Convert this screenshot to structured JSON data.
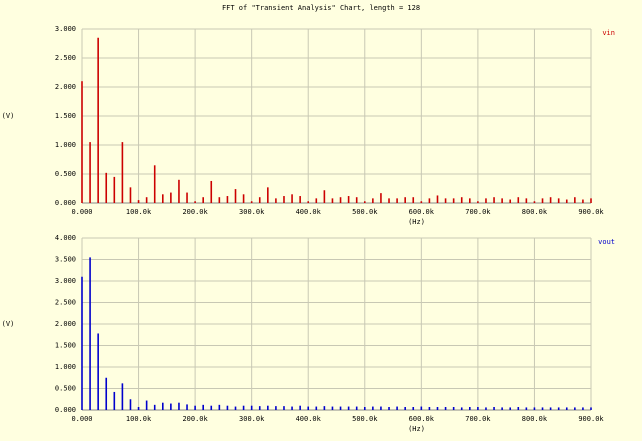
{
  "chart_data": [
    {
      "type": "stem",
      "title": "FFT of \"Transient Analysis\" Chart, length = 128",
      "xlabel": "(Hz)",
      "ylabel": "(V)",
      "series": [
        {
          "name": "vin",
          "color": "#cc0000",
          "values": [
            2.1,
            1.05,
            2.85,
            0.52,
            0.45,
            1.05,
            0.27,
            0.05,
            0.1,
            0.65,
            0.15,
            0.18,
            0.4,
            0.18,
            0.03,
            0.1,
            0.38,
            0.1,
            0.12,
            0.24,
            0.15,
            0.03,
            0.1,
            0.27,
            0.08,
            0.12,
            0.15,
            0.12,
            0.03,
            0.08,
            0.22,
            0.08,
            0.1,
            0.12,
            0.1,
            0.03,
            0.08,
            0.17,
            0.08,
            0.08,
            0.1,
            0.1,
            0.03,
            0.08,
            0.13,
            0.08,
            0.08,
            0.1,
            0.08,
            0.03,
            0.08,
            0.1,
            0.08,
            0.06,
            0.1,
            0.08,
            0.03,
            0.08,
            0.1,
            0.08,
            0.06,
            0.1,
            0.06,
            0.08
          ]
        }
      ],
      "x": [
        0,
        14286,
        28571,
        42857,
        57143,
        71429,
        85714,
        100000,
        114286,
        128571,
        142857,
        157143,
        171429,
        185714,
        200000,
        214286,
        228571,
        242857,
        257143,
        271429,
        285714,
        300000,
        314286,
        328571,
        342857,
        357143,
        371429,
        385714,
        400000,
        414286,
        428571,
        442857,
        457143,
        471429,
        485714,
        500000,
        514286,
        528571,
        542857,
        557143,
        571429,
        585714,
        600000,
        614286,
        628571,
        642857,
        657143,
        671429,
        685714,
        700000,
        714286,
        728571,
        742857,
        757143,
        771429,
        785714,
        800000,
        814286,
        828571,
        842857,
        857143,
        871429,
        885714,
        900000
      ],
      "xlim": [
        0,
        900000
      ],
      "xticks": [
        {
          "value": 0,
          "label": "0.000"
        },
        {
          "value": 100000,
          "label": "100.0k"
        },
        {
          "value": 200000,
          "label": "200.0k"
        },
        {
          "value": 300000,
          "label": "300.0k"
        },
        {
          "value": 400000,
          "label": "400.0k"
        },
        {
          "value": 500000,
          "label": "500.0k"
        },
        {
          "value": 600000,
          "label": "600.0k"
        },
        {
          "value": 700000,
          "label": "700.0k"
        },
        {
          "value": 800000,
          "label": "800.0k"
        },
        {
          "value": 900000,
          "label": "900.0k"
        }
      ],
      "ylim": [
        0,
        3
      ],
      "yticks": [
        {
          "value": 0,
          "label": "0.000"
        },
        {
          "value": 0.5,
          "label": "0.500"
        },
        {
          "value": 1,
          "label": "1.000"
        },
        {
          "value": 1.5,
          "label": "1.500"
        },
        {
          "value": 2,
          "label": "2.000"
        },
        {
          "value": 2.5,
          "label": "2.500"
        },
        {
          "value": 3,
          "label": "3.000"
        }
      ],
      "grid": true
    },
    {
      "type": "stem",
      "xlabel": "(Hz)",
      "ylabel": "(V)",
      "series": [
        {
          "name": "vout",
          "color": "#0000cc",
          "values": [
            3.1,
            3.55,
            1.78,
            0.75,
            0.42,
            0.62,
            0.25,
            0.07,
            0.22,
            0.12,
            0.17,
            0.15,
            0.17,
            0.13,
            0.1,
            0.12,
            0.1,
            0.12,
            0.1,
            0.08,
            0.1,
            0.1,
            0.09,
            0.1,
            0.09,
            0.09,
            0.08,
            0.1,
            0.08,
            0.08,
            0.09,
            0.08,
            0.08,
            0.08,
            0.08,
            0.07,
            0.08,
            0.08,
            0.07,
            0.08,
            0.07,
            0.07,
            0.08,
            0.07,
            0.07,
            0.07,
            0.07,
            0.06,
            0.07,
            0.07,
            0.06,
            0.07,
            0.06,
            0.06,
            0.07,
            0.06,
            0.06,
            0.06,
            0.06,
            0.06,
            0.06,
            0.06,
            0.06,
            0.06
          ]
        }
      ],
      "x": [
        0,
        14286,
        28571,
        42857,
        57143,
        71429,
        85714,
        100000,
        114286,
        128571,
        142857,
        157143,
        171429,
        185714,
        200000,
        214286,
        228571,
        242857,
        257143,
        271429,
        285714,
        300000,
        314286,
        328571,
        342857,
        357143,
        371429,
        385714,
        400000,
        414286,
        428571,
        442857,
        457143,
        471429,
        485714,
        500000,
        514286,
        528571,
        542857,
        557143,
        571429,
        585714,
        600000,
        614286,
        628571,
        642857,
        657143,
        671429,
        685714,
        700000,
        714286,
        728571,
        742857,
        757143,
        771429,
        785714,
        800000,
        814286,
        828571,
        842857,
        857143,
        871429,
        885714,
        900000
      ],
      "xlim": [
        0,
        900000
      ],
      "xticks": [
        {
          "value": 0,
          "label": "0.000"
        },
        {
          "value": 100000,
          "label": "100.0k"
        },
        {
          "value": 200000,
          "label": "200.0k"
        },
        {
          "value": 300000,
          "label": "300.0k"
        },
        {
          "value": 400000,
          "label": "400.0k"
        },
        {
          "value": 500000,
          "label": "500.0k"
        },
        {
          "value": 600000,
          "label": "600.0k"
        },
        {
          "value": 700000,
          "label": "700.0k"
        },
        {
          "value": 800000,
          "label": "800.0k"
        },
        {
          "value": 900000,
          "label": "900.0k"
        }
      ],
      "ylim": [
        0,
        4
      ],
      "yticks": [
        {
          "value": 0,
          "label": "0.000"
        },
        {
          "value": 0.5,
          "label": "0.500"
        },
        {
          "value": 1,
          "label": "1.000"
        },
        {
          "value": 1.5,
          "label": "1.500"
        },
        {
          "value": 2,
          "label": "2.000"
        },
        {
          "value": 2.5,
          "label": "2.500"
        },
        {
          "value": 3,
          "label": "3.000"
        },
        {
          "value": 3.5,
          "label": "3.500"
        },
        {
          "value": 4,
          "label": "4.000"
        }
      ],
      "grid": true
    }
  ]
}
